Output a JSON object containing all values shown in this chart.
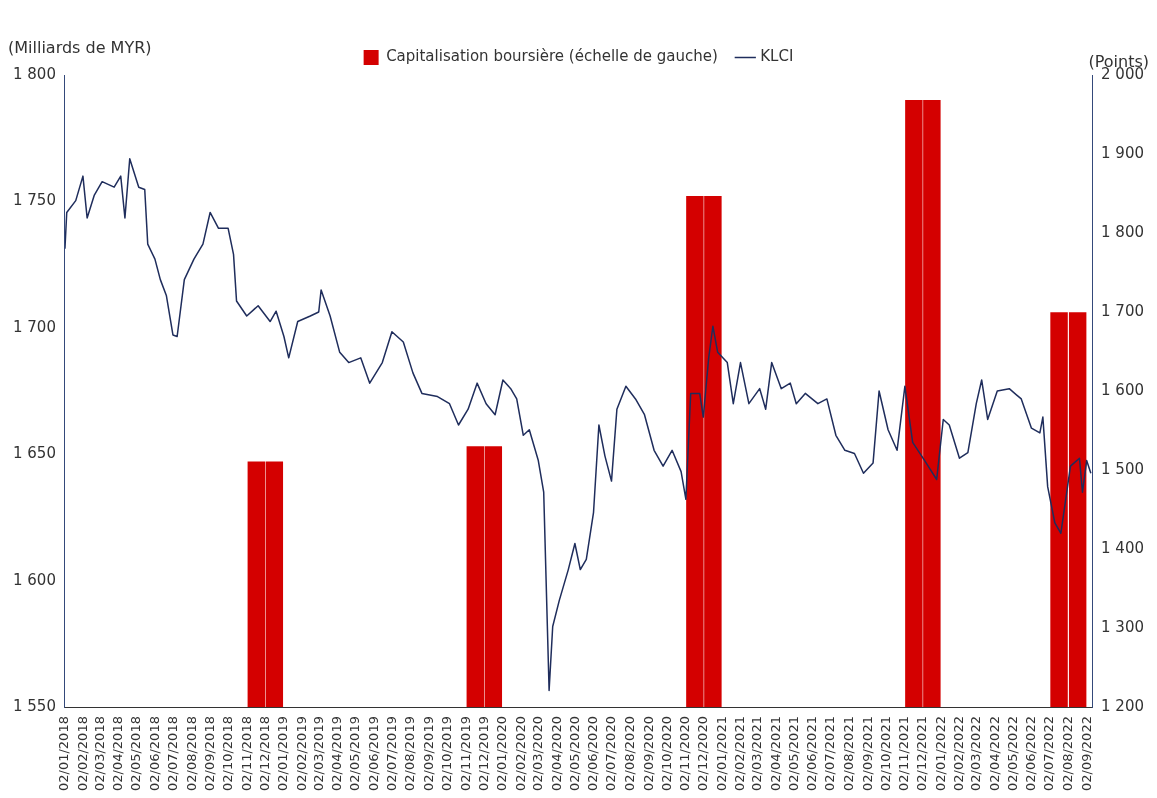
{
  "chart_data": {
    "type": "bar",
    "ylabel": "(Milliards de MYR)",
    "y2label": "(Points)",
    "xlim": [
      "2018-01-02",
      "2022-09-10"
    ],
    "xticks": [
      {
        "value": "2018-01-02",
        "label": "02/01/2018"
      },
      {
        "value": "2018-02-02",
        "label": "02/02/2018"
      },
      {
        "value": "2018-03-02",
        "label": "02/03/2018"
      },
      {
        "value": "2018-04-02",
        "label": "02/04/2018"
      },
      {
        "value": "2018-05-02",
        "label": "02/05/2018"
      },
      {
        "value": "2018-06-02",
        "label": "02/06/2018"
      },
      {
        "value": "2018-07-02",
        "label": "02/07/2018"
      },
      {
        "value": "2018-08-02",
        "label": "02/08/2018"
      },
      {
        "value": "2018-09-02",
        "label": "02/09/2018"
      },
      {
        "value": "2018-10-02",
        "label": "02/10/2018"
      },
      {
        "value": "2018-11-02",
        "label": "02/11/2018"
      },
      {
        "value": "2018-12-02",
        "label": "02/12/2018"
      },
      {
        "value": "2019-01-02",
        "label": "02/01/2019"
      },
      {
        "value": "2019-02-02",
        "label": "02/02/2019"
      },
      {
        "value": "2019-03-02",
        "label": "02/03/2019"
      },
      {
        "value": "2019-04-02",
        "label": "02/04/2019"
      },
      {
        "value": "2019-05-02",
        "label": "02/05/2019"
      },
      {
        "value": "2019-06-02",
        "label": "02/06/2019"
      },
      {
        "value": "2019-07-02",
        "label": "02/07/2019"
      },
      {
        "value": "2019-08-02",
        "label": "02/08/2019"
      },
      {
        "value": "2019-09-02",
        "label": "02/09/2019"
      },
      {
        "value": "2019-10-02",
        "label": "02/10/2019"
      },
      {
        "value": "2019-11-02",
        "label": "02/11/2019"
      },
      {
        "value": "2019-12-02",
        "label": "02/12/2019"
      },
      {
        "value": "2020-01-02",
        "label": "02/01/2020"
      },
      {
        "value": "2020-02-02",
        "label": "02/02/2020"
      },
      {
        "value": "2020-03-02",
        "label": "02/03/2020"
      },
      {
        "value": "2020-04-02",
        "label": "02/04/2020"
      },
      {
        "value": "2020-05-02",
        "label": "02/05/2020"
      },
      {
        "value": "2020-06-02",
        "label": "02/06/2020"
      },
      {
        "value": "2020-07-02",
        "label": "02/07/2020"
      },
      {
        "value": "2020-08-02",
        "label": "02/08/2020"
      },
      {
        "value": "2020-09-02",
        "label": "02/09/2020"
      },
      {
        "value": "2020-10-02",
        "label": "02/10/2020"
      },
      {
        "value": "2020-11-02",
        "label": "02/11/2020"
      },
      {
        "value": "2020-12-02",
        "label": "02/12/2020"
      },
      {
        "value": "2021-01-02",
        "label": "02/01/2021"
      },
      {
        "value": "2021-02-02",
        "label": "02/02/2021"
      },
      {
        "value": "2021-03-02",
        "label": "02/03/2021"
      },
      {
        "value": "2021-04-02",
        "label": "02/04/2021"
      },
      {
        "value": "2021-05-02",
        "label": "02/05/2021"
      },
      {
        "value": "2021-06-02",
        "label": "02/06/2021"
      },
      {
        "value": "2021-07-02",
        "label": "02/07/2021"
      },
      {
        "value": "2021-08-02",
        "label": "02/08/2021"
      },
      {
        "value": "2021-09-02",
        "label": "02/09/2021"
      },
      {
        "value": "2021-10-02",
        "label": "02/10/2021"
      },
      {
        "value": "2021-11-02",
        "label": "02/11/2021"
      },
      {
        "value": "2021-12-02",
        "label": "02/12/2021"
      },
      {
        "value": "2022-01-02",
        "label": "02/01/2022"
      },
      {
        "value": "2022-02-02",
        "label": "02/02/2022"
      },
      {
        "value": "2022-03-02",
        "label": "02/03/2022"
      },
      {
        "value": "2022-04-02",
        "label": "02/04/2022"
      },
      {
        "value": "2022-05-02",
        "label": "02/05/2022"
      },
      {
        "value": "2022-06-02",
        "label": "02/06/2022"
      },
      {
        "value": "2022-07-02",
        "label": "02/07/2022"
      },
      {
        "value": "2022-08-02",
        "label": "02/08/2022"
      },
      {
        "value": "2022-09-02",
        "label": "02/09/2022"
      }
    ],
    "ylim": [
      1550,
      1800
    ],
    "yticks": [
      {
        "value": 1550,
        "label": "1 550"
      },
      {
        "value": 1600,
        "label": "1 600"
      },
      {
        "value": 1650,
        "label": "1 650"
      },
      {
        "value": 1700,
        "label": "1 700"
      },
      {
        "value": 1750,
        "label": "1 750"
      },
      {
        "value": 1800,
        "label": "1 800"
      }
    ],
    "y2lim": [
      1200,
      2000
    ],
    "y2ticks": [
      {
        "value": 1200,
        "label": "1 200"
      },
      {
        "value": 1300,
        "label": "1 300"
      },
      {
        "value": 1400,
        "label": "1 400"
      },
      {
        "value": 1500,
        "label": "1 500"
      },
      {
        "value": 1600,
        "label": "1 600"
      },
      {
        "value": 1700,
        "label": "1 700"
      },
      {
        "value": 1800,
        "label": "1 800"
      },
      {
        "value": 1900,
        "label": "1 900"
      },
      {
        "value": 2000,
        "label": "2 000"
      }
    ],
    "grid": false,
    "legend": "top",
    "marker": "none",
    "series": [
      {
        "name": "Capitalisation boursière (échelle de gauche)",
        "color": "#d40000",
        "x": [
          "2018-11-17",
          "2018-12-17",
          "2019-11-17",
          "2019-12-17",
          "2020-11-17",
          "2020-12-17",
          "2021-11-17",
          "2021-12-17",
          "2022-07-17",
          "2022-08-17"
        ],
        "values": [
          1647,
          1647,
          1653,
          1653,
          1752,
          1752,
          1790,
          1790,
          1706,
          1706
        ]
      },
      {
        "name": "KLCI",
        "type": "line",
        "axis": "y2",
        "color": "#1f2d5c",
        "line_style": "solid",
        "x": [
          "2018-01-02",
          "2018-01-05",
          "2018-01-20",
          "2018-02-01",
          "2018-02-08",
          "2018-02-20",
          "2018-03-05",
          "2018-03-25",
          "2018-04-05",
          "2018-04-12",
          "2018-04-20",
          "2018-05-05",
          "2018-05-15",
          "2018-05-20",
          "2018-06-01",
          "2018-06-10",
          "2018-06-20",
          "2018-07-01",
          "2018-07-08",
          "2018-07-20",
          "2018-08-05",
          "2018-08-20",
          "2018-09-01",
          "2018-09-15",
          "2018-10-01",
          "2018-10-10",
          "2018-10-15",
          "2018-11-01",
          "2018-11-20",
          "2018-12-10",
          "2018-12-20",
          "2019-01-02",
          "2019-01-10",
          "2019-01-25",
          "2019-02-15",
          "2019-03-01",
          "2019-03-05",
          "2019-03-20",
          "2019-04-05",
          "2019-04-20",
          "2019-05-10",
          "2019-05-25",
          "2019-06-15",
          "2019-07-01",
          "2019-07-20",
          "2019-08-05",
          "2019-08-20",
          "2019-09-15",
          "2019-10-05",
          "2019-10-20",
          "2019-11-05",
          "2019-11-20",
          "2019-12-05",
          "2019-12-20",
          "2020-01-02",
          "2020-01-15",
          "2020-01-25",
          "2020-02-05",
          "2020-02-15",
          "2020-03-01",
          "2020-03-10",
          "2020-03-19",
          "2020-03-25",
          "2020-04-05",
          "2020-04-20",
          "2020-05-01",
          "2020-05-10",
          "2020-05-20",
          "2020-06-01",
          "2020-06-10",
          "2020-06-20",
          "2020-07-01",
          "2020-07-10",
          "2020-07-25",
          "2020-08-10",
          "2020-08-25",
          "2020-09-10",
          "2020-09-25",
          "2020-10-10",
          "2020-10-25",
          "2020-11-02",
          "2020-11-10",
          "2020-11-25",
          "2020-12-01",
          "2020-12-10",
          "2020-12-17",
          "2020-12-25",
          "2021-01-10",
          "2021-01-20",
          "2021-02-01",
          "2021-02-15",
          "2021-03-05",
          "2021-03-15",
          "2021-03-25",
          "2021-04-10",
          "2021-04-25",
          "2021-05-05",
          "2021-05-20",
          "2021-06-10",
          "2021-06-25",
          "2021-07-10",
          "2021-07-25",
          "2021-08-10",
          "2021-08-25",
          "2021-09-10",
          "2021-09-20",
          "2021-10-05",
          "2021-10-20",
          "2021-11-02",
          "2021-11-15",
          "2021-12-05",
          "2021-12-25",
          "2022-01-05",
          "2022-01-15",
          "2022-02-01",
          "2022-02-15",
          "2022-03-01",
          "2022-03-10",
          "2022-03-20",
          "2022-04-05",
          "2022-04-25",
          "2022-05-15",
          "2022-06-01",
          "2022-06-15",
          "2022-06-20",
          "2022-06-28",
          "2022-07-10",
          "2022-07-20",
          "2022-08-05",
          "2022-08-20",
          "2022-08-25",
          "2022-09-01",
          "2022-09-08"
        ],
        "values": [
          1780,
          1826,
          1841,
          1872,
          1819,
          1848,
          1865,
          1858,
          1872,
          1819,
          1894,
          1858,
          1855,
          1786,
          1767,
          1741,
          1721,
          1671,
          1669,
          1741,
          1767,
          1786,
          1826,
          1806,
          1806,
          1773,
          1714,
          1695,
          1708,
          1688,
          1701,
          1669,
          1642,
          1688,
          1695,
          1700,
          1728,
          1695,
          1649,
          1636,
          1642,
          1610,
          1636,
          1675,
          1662,
          1623,
          1597,
          1593,
          1584,
          1557,
          1577,
          1610,
          1584,
          1570,
          1614,
          1603,
          1590,
          1544,
          1551,
          1512,
          1472,
          1221,
          1302,
          1335,
          1374,
          1407,
          1374,
          1387,
          1446,
          1557,
          1518,
          1486,
          1577,
          1606,
          1590,
          1570,
          1525,
          1505,
          1525,
          1498,
          1463,
          1597,
          1597,
          1567,
          1642,
          1682,
          1649,
          1636,
          1584,
          1636,
          1584,
          1603,
          1577,
          1636,
          1603,
          1610,
          1584,
          1597,
          1584,
          1590,
          1544,
          1525,
          1521,
          1496,
          1509,
          1600,
          1551,
          1525,
          1606,
          1535,
          1512,
          1488,
          1564,
          1557,
          1515,
          1522,
          1584,
          1614,
          1564,
          1600,
          1603,
          1590,
          1553,
          1547,
          1567,
          1479,
          1433,
          1420,
          1505,
          1515,
          1472,
          1512,
          1496
        ]
      }
    ]
  }
}
